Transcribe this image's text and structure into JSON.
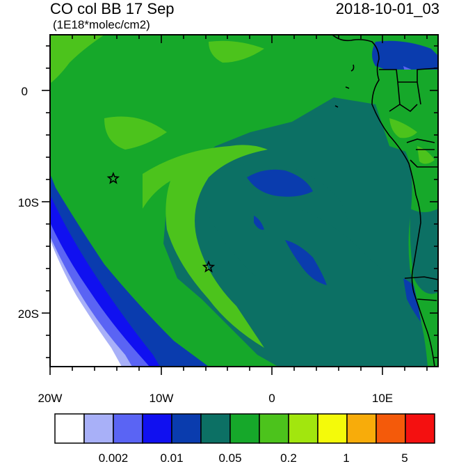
{
  "header": {
    "title": "CO col BB 17 Sep",
    "units": "(1E18*molec/cm2)",
    "timestamp": "2018-10-01_03"
  },
  "map": {
    "x_tick_labels": [
      "20W",
      "10W",
      "0",
      "10E"
    ],
    "y_tick_labels": [
      "0",
      "10S",
      "20S"
    ],
    "x_range_deg": [
      -20,
      15
    ],
    "y_range_deg": [
      -25,
      5
    ],
    "markers": [
      {
        "name": "star",
        "lon": -14.3,
        "lat": -8.0
      },
      {
        "name": "star",
        "lon": -5.7,
        "lat": -16.0
      }
    ]
  },
  "colorbar": {
    "colors": [
      "#ffffff",
      "#a8b0f8",
      "#5a64f4",
      "#1010f0",
      "#0a3cae",
      "#0c7064",
      "#16a82a",
      "#4cc31c",
      "#a2e60e",
      "#f4fa0a",
      "#f8ac0a",
      "#f45a0a",
      "#f41010"
    ],
    "labels": [
      "0.002",
      "0.01",
      "0.05",
      "0.2",
      "1",
      "5"
    ]
  },
  "colors": {
    "white": "#ffffff",
    "lightblue": "#a8b0f8",
    "medblue": "#5a64f4",
    "blue": "#1010f0",
    "darkblue": "#0a3cae",
    "teal": "#0c7064",
    "green": "#16a82a",
    "lightgreen": "#4cc31c"
  }
}
